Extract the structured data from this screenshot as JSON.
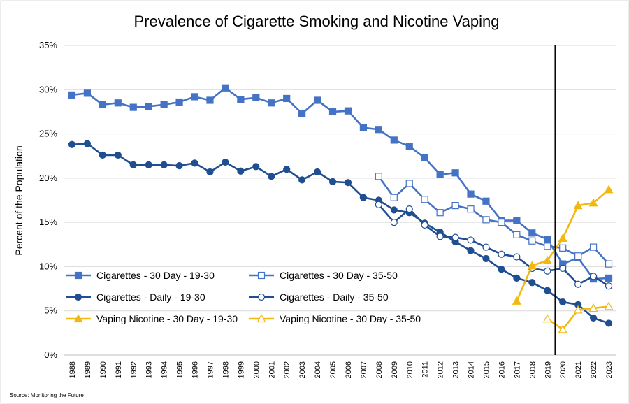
{
  "chart_data": {
    "type": "line",
    "title": "Prevalence of Cigarette Smoking and Nicotine Vaping",
    "ylabel": "Percent of the Population",
    "xlabel": "",
    "source": "Source: Monitoring the Future",
    "ylim": [
      0,
      35
    ],
    "yticks": [
      "0%",
      "5%",
      "10%",
      "15%",
      "20%",
      "25%",
      "30%",
      "35%"
    ],
    "grid": true,
    "legend": "lower-left inside plot, two columns",
    "vertical_marker_at": "2020",
    "categories": [
      "1988",
      "1989",
      "1990",
      "1991",
      "1992",
      "1993",
      "1994",
      "1995",
      "1996",
      "1997",
      "1998",
      "1999",
      "2000",
      "2001",
      "2002",
      "2003",
      "2004",
      "2005",
      "2006",
      "2007",
      "2008",
      "2009",
      "2010",
      "2011",
      "2012",
      "2013",
      "2014",
      "2015",
      "2016",
      "2017",
      "2018",
      "2019",
      "2020",
      "2021",
      "2022",
      "2023"
    ],
    "series": [
      {
        "name": "Cigarettes - 30 Day - 19-30",
        "color": "#4472C4",
        "marker": "square-filled",
        "values": [
          29.4,
          29.6,
          28.3,
          28.5,
          28.0,
          28.1,
          28.3,
          28.6,
          29.2,
          28.8,
          30.2,
          28.9,
          29.1,
          28.5,
          29.0,
          27.3,
          28.8,
          27.5,
          27.6,
          25.7,
          25.5,
          24.3,
          23.6,
          22.3,
          20.4,
          20.6,
          18.2,
          17.4,
          15.2,
          15.2,
          13.8,
          13.1,
          10.3,
          11.0,
          8.6,
          8.7
        ]
      },
      {
        "name": "Cigarettes - 30 Day - 35-50",
        "color": "#4472C4",
        "marker": "square-open",
        "values": [
          null,
          null,
          null,
          null,
          null,
          null,
          null,
          null,
          null,
          null,
          null,
          null,
          null,
          null,
          null,
          null,
          null,
          null,
          null,
          null,
          20.2,
          17.8,
          19.4,
          17.6,
          16.1,
          16.9,
          16.5,
          15.3,
          15.0,
          13.6,
          12.9,
          12.3,
          12.1,
          11.2,
          12.2,
          10.3
        ]
      },
      {
        "name": "Cigarettes - Daily - 19-30",
        "color": "#1F4E91",
        "marker": "circle-filled",
        "values": [
          23.8,
          23.9,
          22.6,
          22.6,
          21.5,
          21.5,
          21.5,
          21.4,
          21.7,
          20.7,
          21.8,
          20.8,
          21.3,
          20.2,
          21.0,
          19.8,
          20.7,
          19.6,
          19.5,
          17.8,
          17.5,
          16.4,
          16.1,
          14.9,
          13.9,
          12.8,
          11.8,
          10.9,
          9.7,
          8.7,
          8.2,
          7.3,
          6.0,
          5.7,
          4.2,
          3.6
        ]
      },
      {
        "name": "Cigarettes - Daily - 35-50",
        "color": "#1F4E91",
        "marker": "circle-open",
        "values": [
          null,
          null,
          null,
          null,
          null,
          null,
          null,
          null,
          null,
          null,
          null,
          null,
          null,
          null,
          null,
          null,
          null,
          null,
          null,
          null,
          17.0,
          15.0,
          16.5,
          14.7,
          13.4,
          13.3,
          13.0,
          12.2,
          11.4,
          11.1,
          9.8,
          9.5,
          9.8,
          8.0,
          8.9,
          7.8
        ]
      },
      {
        "name": "Vaping Nicotine - 30 Day - 19-30",
        "color": "#F2B80F",
        "marker": "triangle-filled",
        "values": [
          null,
          null,
          null,
          null,
          null,
          null,
          null,
          null,
          null,
          null,
          null,
          null,
          null,
          null,
          null,
          null,
          null,
          null,
          null,
          null,
          null,
          null,
          null,
          null,
          null,
          null,
          null,
          null,
          null,
          6.1,
          10.1,
          10.7,
          13.2,
          16.9,
          17.2,
          18.7
        ]
      },
      {
        "name": "Vaping Nicotine - 30 Day - 35-50",
        "color": "#F2B80F",
        "marker": "triangle-open",
        "values": [
          null,
          null,
          null,
          null,
          null,
          null,
          null,
          null,
          null,
          null,
          null,
          null,
          null,
          null,
          null,
          null,
          null,
          null,
          null,
          null,
          null,
          null,
          null,
          null,
          null,
          null,
          null,
          null,
          null,
          null,
          null,
          4.1,
          2.9,
          5.1,
          5.3,
          5.5
        ]
      }
    ]
  }
}
